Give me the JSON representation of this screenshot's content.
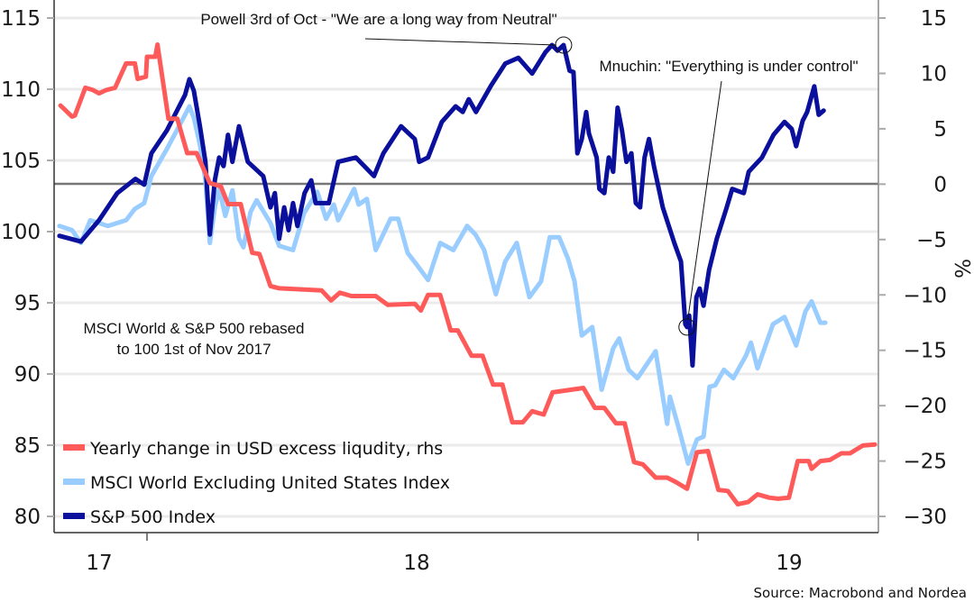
{
  "chart_data": {
    "type": "line",
    "title": "",
    "xlabel": "",
    "ylabel": "",
    "ylabel_right": "%",
    "x_tick_labels": [
      "17",
      "18",
      "19"
    ],
    "ylim_left": [
      80,
      115
    ],
    "yticks_left": [
      115,
      110,
      105,
      100,
      95,
      90,
      85,
      80
    ],
    "ylim_right": [
      -30,
      15
    ],
    "yticks_right": [
      15,
      10,
      5,
      0,
      -5,
      -10,
      -15,
      -20,
      -25,
      -30
    ],
    "grid": true,
    "legend_position": "bottom-left",
    "note": [
      "MSCI World & S&P 500 rebased",
      "to 100 1st of Nov 2017"
    ],
    "source": "Source: Macrobond and Nordea",
    "annotations": [
      {
        "text": "Powell 3rd of Oct - \"We are a long way from Neutral\"",
        "date": 2018.756,
        "value": 113.1
      },
      {
        "text": "Mnuchin: \"Everything is under control\"",
        "date": 2018.98,
        "value": 93.3
      }
    ],
    "series": [
      {
        "name": "Yearly change in USD excess liqudity, rhs",
        "axis": "right",
        "color": "#ff5a5a",
        "x": [
          2017.843,
          2017.864,
          2017.869,
          2017.888,
          2017.902,
          2017.913,
          2017.926,
          2017.942,
          2017.962,
          2017.978,
          2017.983,
          2017.998,
          2018.0,
          2018.015,
          2018.019,
          2018.039,
          2018.055,
          2018.073,
          2018.09,
          2018.114,
          2018.134,
          2018.147,
          2018.17,
          2018.191,
          2018.204,
          2018.224,
          2018.24,
          2018.317,
          2018.334,
          2018.35,
          2018.371,
          2018.415,
          2018.437,
          2018.486,
          2018.497,
          2018.51,
          2018.532,
          2018.551,
          2018.564,
          2018.589,
          2018.609,
          2018.628,
          2018.645,
          2018.663,
          2018.682,
          2018.699,
          2018.72,
          2018.736,
          2018.792,
          2018.813,
          2018.83,
          2018.851,
          2018.867,
          2018.884,
          2018.9,
          2018.923,
          2018.944,
          2018.96,
          2018.98,
          2018.998,
          2019.018,
          2019.037,
          2019.054,
          2019.072,
          2019.091,
          2019.108,
          2019.129,
          2019.145,
          2019.165,
          2019.181,
          2019.201,
          2019.206,
          2019.222,
          2019.239,
          2019.26,
          2019.276,
          2019.299,
          2019.321
        ],
        "values": [
          7.1,
          6.1,
          6.2,
          8.7,
          8.5,
          8.2,
          8.5,
          8.7,
          10.9,
          10.9,
          9.5,
          9.7,
          11.5,
          11.5,
          12.6,
          5.9,
          5.9,
          2.8,
          2.8,
          0.1,
          -0.2,
          -1.8,
          -1.8,
          -6.2,
          -6.3,
          -9.2,
          -9.4,
          -9.6,
          -10.5,
          -9.8,
          -10.1,
          -10.1,
          -10.9,
          -10.8,
          -11.4,
          -10.0,
          -10.0,
          -13.2,
          -13.2,
          -15.5,
          -15.5,
          -18.1,
          -18.1,
          -21.5,
          -21.5,
          -20.5,
          -20.8,
          -18.8,
          -18.4,
          -20.2,
          -20.2,
          -21.6,
          -21.6,
          -25.1,
          -25.3,
          -26.5,
          -26.5,
          -26.9,
          -27.5,
          -24.2,
          -24.1,
          -27.6,
          -27.7,
          -28.9,
          -28.7,
          -28.0,
          -28.3,
          -28.4,
          -28.3,
          -25.0,
          -25.0,
          -25.7,
          -25.0,
          -24.9,
          -24.3,
          -24.3,
          -23.6,
          -23.5
        ]
      },
      {
        "name": "MSCI World Excluding United States Index",
        "axis": "left",
        "color": "#99ccff",
        "x": [
          2017.841,
          2017.864,
          2017.88,
          2017.897,
          2017.929,
          2017.962,
          2017.978,
          2017.995,
          2018.008,
          2018.036,
          2018.069,
          2018.077,
          2018.085,
          2018.096,
          2018.106,
          2018.114,
          2018.123,
          2018.131,
          2018.142,
          2018.155,
          2018.167,
          2018.175,
          2018.188,
          2018.199,
          2018.224,
          2018.24,
          2018.265,
          2018.285,
          2018.309,
          2018.325,
          2018.339,
          2018.347,
          2018.376,
          2018.384,
          2018.399,
          2018.415,
          2018.442,
          2018.456,
          2018.473,
          2018.489,
          2018.51,
          2018.532,
          2018.556,
          2018.581,
          2018.596,
          2018.612,
          2018.633,
          2018.65,
          2018.671,
          2018.694,
          2018.715,
          2018.731,
          2018.748,
          2018.764,
          2018.776,
          2018.789,
          2018.808,
          2018.825,
          2018.846,
          2018.857,
          2018.874,
          2018.89,
          2018.923,
          2018.944,
          2018.949,
          2018.965,
          2018.982,
          2018.998,
          2019.01,
          2019.021,
          2019.031,
          2019.047,
          2019.064,
          2019.087,
          2019.096,
          2019.108,
          2019.136,
          2019.157,
          2019.178,
          2019.195,
          2019.206,
          2019.222,
          2019.231
        ],
        "values": [
          100.4,
          100.1,
          99.2,
          100.8,
          100.4,
          100.8,
          101.6,
          102.0,
          103.9,
          105.8,
          108.2,
          108.8,
          108.0,
          106.1,
          103.6,
          99.2,
          101.7,
          103.0,
          101.1,
          102.9,
          99.5,
          98.9,
          101.4,
          102.2,
          100.6,
          99.0,
          98.7,
          101.3,
          102.8,
          100.9,
          101.9,
          100.8,
          103.0,
          101.9,
          102.3,
          98.7,
          100.9,
          100.9,
          98.5,
          97.7,
          96.6,
          99.2,
          98.7,
          100.4,
          99.8,
          98.7,
          95.6,
          97.9,
          99.2,
          95.4,
          96.5,
          99.6,
          99.6,
          98.1,
          96.5,
          92.7,
          93.3,
          88.9,
          91.8,
          92.5,
          90.3,
          89.7,
          91.6,
          86.5,
          88.4,
          86.2,
          83.7,
          85.4,
          85.6,
          89.1,
          89.2,
          90.3,
          89.7,
          91.3,
          92.2,
          90.4,
          93.5,
          94.0,
          92.0,
          94.4,
          95.1,
          93.6,
          93.6
        ]
      },
      {
        "name": "S&P 500 Index",
        "axis": "left",
        "color": "#0a0f9c",
        "x": [
          2017.841,
          2017.88,
          2017.913,
          2017.946,
          2017.979,
          2017.995,
          2018.008,
          2018.036,
          2018.069,
          2018.077,
          2018.085,
          2018.096,
          2018.106,
          2018.114,
          2018.123,
          2018.131,
          2018.139,
          2018.147,
          2018.155,
          2018.167,
          2018.183,
          2018.211,
          2018.224,
          2018.232,
          2018.24,
          2018.249,
          2018.257,
          2018.265,
          2018.273,
          2018.286,
          2018.298,
          2018.306,
          2018.33,
          2018.347,
          2018.379,
          2018.412,
          2018.429,
          2018.461,
          2018.486,
          2018.494,
          2018.51,
          2018.535,
          2018.56,
          2018.573,
          2018.584,
          2018.597,
          2018.625,
          2018.65,
          2018.674,
          2018.699,
          2018.723,
          2018.735,
          2018.745,
          2018.756,
          2018.767,
          2018.774,
          2018.781,
          2018.789,
          2018.797,
          2018.802,
          2018.816,
          2018.821,
          2018.83,
          2018.838,
          2018.846,
          2018.854,
          2018.862,
          2018.87,
          2018.879,
          2018.887,
          2018.895,
          2018.903,
          2018.911,
          2018.92,
          2018.936,
          2018.957,
          2018.969,
          2018.977,
          2018.98,
          2018.984,
          2018.99,
          2018.997,
          2019.003,
          2019.01,
          2019.02,
          2019.034,
          2019.052,
          2019.062,
          2019.083,
          2019.092,
          2019.116,
          2019.137,
          2019.157,
          2019.17,
          2019.178,
          2019.19,
          2019.198,
          2019.211,
          2019.219,
          2019.228
        ],
        "values": [
          99.7,
          99.3,
          100.8,
          102.7,
          103.7,
          103.3,
          105.5,
          107.1,
          109.6,
          110.7,
          109.9,
          107.4,
          104.9,
          99.8,
          103.6,
          105.2,
          104.6,
          106.8,
          104.9,
          107.4,
          104.9,
          103.9,
          101.7,
          102.7,
          99.5,
          101.7,
          100.1,
          102.0,
          100.4,
          102.7,
          103.6,
          102.0,
          102.0,
          104.9,
          105.2,
          103.9,
          105.5,
          107.4,
          106.5,
          104.9,
          105.2,
          107.7,
          108.8,
          108.4,
          109.3,
          108.4,
          110.3,
          111.8,
          112.2,
          111.1,
          112.6,
          113.1,
          112.7,
          113.1,
          111.3,
          111.2,
          105.5,
          106.5,
          108.4,
          106.9,
          105.2,
          103.0,
          102.7,
          105.2,
          104.2,
          108.7,
          107.1,
          104.9,
          105.5,
          102.0,
          101.7,
          105.2,
          106.5,
          104.6,
          101.7,
          99.2,
          97.9,
          93.5,
          93.3,
          94.1,
          90.6,
          95.4,
          96.0,
          94.8,
          97.3,
          99.5,
          101.7,
          103.0,
          102.7,
          104.2,
          105.2,
          106.8,
          107.7,
          107.2,
          106.0,
          107.8,
          108.4,
          110.2,
          108.2,
          108.5
        ]
      }
    ]
  }
}
